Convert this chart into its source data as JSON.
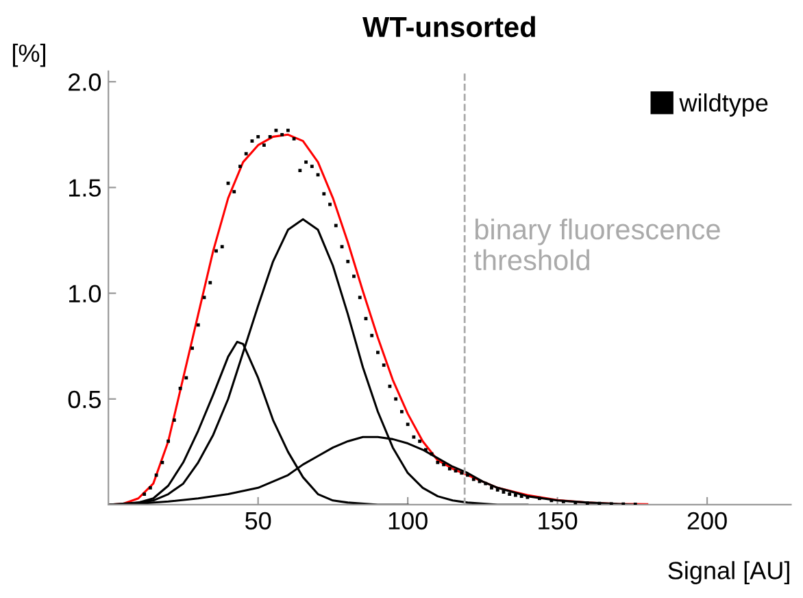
{
  "chart_data": {
    "type": "line",
    "title": "WT-unsorted",
    "xlabel": "Signal [AU]",
    "ylabel": "[%]",
    "xlim": [
      0,
      228
    ],
    "ylim": [
      0,
      2.05
    ],
    "xticks": [
      50,
      100,
      150,
      200
    ],
    "yticks": [
      {
        "value": 0.5,
        "label": "0.5"
      },
      {
        "value": 1.0,
        "label": "1.0"
      },
      {
        "value": 1.5,
        "label": "1.5"
      },
      {
        "value": 2.0,
        "label": "2.0"
      }
    ],
    "grid": false,
    "legend": "top right",
    "ref_lines": [
      {
        "axis": "x",
        "value": 119,
        "label": "binary fluorescence threshold",
        "color": "#aaaaaa",
        "line_style": "dashed"
      }
    ],
    "series": [
      {
        "name": "wildtype",
        "type": "scatter",
        "marker": "square",
        "color": "#000000",
        "x": [
          12,
          14,
          16,
          18,
          20,
          22,
          24,
          26,
          28,
          30,
          32,
          34,
          36,
          38,
          40,
          42,
          44,
          46,
          48,
          50,
          52,
          54,
          56,
          58,
          60,
          62,
          64,
          66,
          68,
          70,
          72,
          74,
          76,
          78,
          80,
          82,
          84,
          86,
          88,
          90,
          92,
          94,
          96,
          98,
          100,
          102,
          104,
          106,
          108,
          110,
          112,
          114,
          116,
          118,
          120,
          122,
          124,
          126,
          128,
          130,
          132,
          134,
          136,
          138,
          140,
          144,
          148,
          152,
          156,
          160,
          164,
          168,
          172,
          176
        ],
        "values": [
          0.05,
          0.08,
          0.14,
          0.2,
          0.3,
          0.4,
          0.55,
          0.6,
          0.74,
          0.85,
          0.98,
          1.05,
          1.2,
          1.22,
          1.52,
          1.48,
          1.6,
          1.66,
          1.72,
          1.74,
          1.7,
          1.74,
          1.77,
          1.75,
          1.77,
          1.73,
          1.58,
          1.62,
          1.6,
          1.56,
          1.47,
          1.42,
          1.32,
          1.22,
          1.15,
          1.08,
          0.98,
          0.88,
          0.8,
          0.72,
          0.66,
          0.56,
          0.5,
          0.44,
          0.38,
          0.32,
          0.3,
          0.26,
          0.24,
          0.2,
          0.19,
          0.17,
          0.16,
          0.15,
          0.14,
          0.12,
          0.11,
          0.1,
          0.08,
          0.07,
          0.06,
          0.05,
          0.045,
          0.04,
          0.035,
          0.03,
          0.02,
          0.015,
          0.01,
          0.008,
          0.006,
          0.004,
          0.003,
          0.002
        ]
      },
      {
        "color": "#ff0000",
        "x": [
          0,
          5,
          10,
          15,
          20,
          25,
          30,
          35,
          40,
          45,
          50,
          55,
          60,
          65,
          70,
          75,
          80,
          85,
          90,
          95,
          100,
          105,
          110,
          115,
          120,
          125,
          130,
          140,
          150,
          160,
          170,
          180
        ],
        "values": [
          0,
          0.005,
          0.03,
          0.1,
          0.3,
          0.6,
          0.9,
          1.2,
          1.45,
          1.62,
          1.7,
          1.74,
          1.75,
          1.72,
          1.62,
          1.45,
          1.24,
          1.01,
          0.79,
          0.59,
          0.43,
          0.3,
          0.21,
          0.17,
          0.14,
          0.11,
          0.08,
          0.045,
          0.022,
          0.01,
          0.004,
          0.002
        ]
      },
      {
        "color": "#000000",
        "x": [
          0,
          5,
          10,
          15,
          20,
          25,
          30,
          35,
          40,
          43,
          45,
          50,
          55,
          60,
          65,
          70,
          75,
          80,
          90,
          100
        ],
        "values": [
          0,
          0,
          0.01,
          0.03,
          0.09,
          0.2,
          0.35,
          0.52,
          0.7,
          0.77,
          0.76,
          0.6,
          0.4,
          0.25,
          0.13,
          0.05,
          0.02,
          0.01,
          0,
          0
        ]
      },
      {
        "color": "#000000",
        "x": [
          0,
          10,
          15,
          20,
          25,
          30,
          35,
          40,
          45,
          50,
          55,
          60,
          65,
          70,
          75,
          80,
          85,
          90,
          95,
          100,
          105,
          110,
          115,
          120,
          130,
          140
        ],
        "values": [
          0,
          0.01,
          0.02,
          0.05,
          0.1,
          0.2,
          0.33,
          0.5,
          0.72,
          0.94,
          1.15,
          1.3,
          1.35,
          1.3,
          1.13,
          0.9,
          0.65,
          0.44,
          0.27,
          0.15,
          0.08,
          0.04,
          0.02,
          0.01,
          0,
          0
        ]
      },
      {
        "color": "#000000",
        "x": [
          0,
          10,
          20,
          30,
          40,
          50,
          60,
          65,
          70,
          75,
          80,
          85,
          90,
          95,
          100,
          105,
          110,
          115,
          120,
          125,
          130,
          140,
          150,
          160,
          175
        ],
        "values": [
          0,
          0.005,
          0.015,
          0.03,
          0.05,
          0.08,
          0.14,
          0.19,
          0.23,
          0.27,
          0.3,
          0.32,
          0.32,
          0.31,
          0.29,
          0.26,
          0.22,
          0.18,
          0.15,
          0.11,
          0.08,
          0.04,
          0.02,
          0.01,
          0
        ]
      }
    ]
  }
}
